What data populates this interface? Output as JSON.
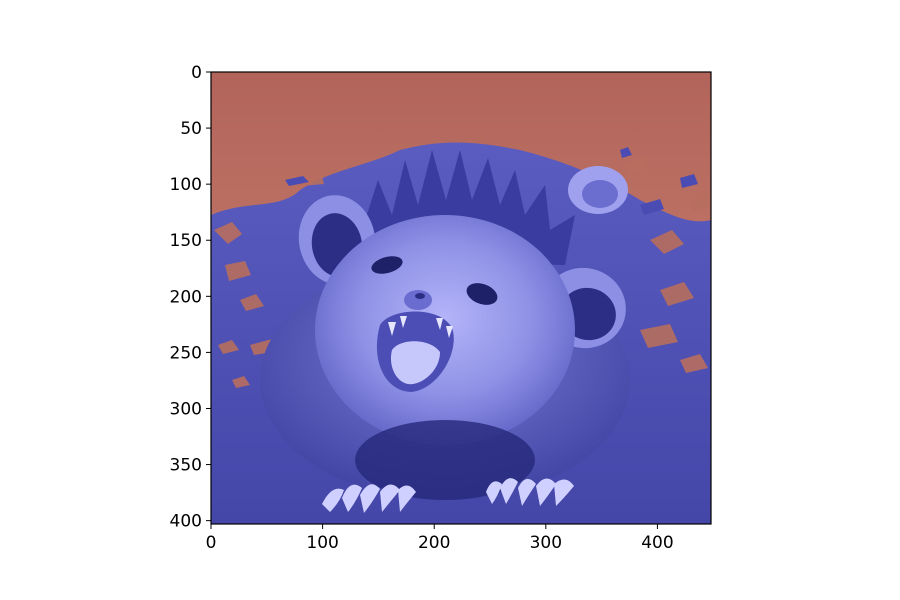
{
  "image": {
    "subject": "opossum-photo",
    "overlay_colors": {
      "background_tint": "#b86a60",
      "foreground_tint": "#5c5ec2",
      "highlight_tint": "#a7a8f5",
      "shadow_tint": "#262873"
    }
  },
  "axes": {
    "x_range": [
      0,
      448
    ],
    "y_range": [
      0,
      403
    ],
    "y_inverted": true,
    "x_ticks": [
      "0",
      "100",
      "200",
      "300",
      "400"
    ],
    "x_tick_values": [
      0,
      100,
      200,
      300,
      400
    ],
    "y_ticks": [
      "0",
      "50",
      "100",
      "150",
      "200",
      "250",
      "300",
      "350",
      "400"
    ],
    "y_tick_values": [
      0,
      50,
      100,
      150,
      200,
      250,
      300,
      350,
      400
    ]
  }
}
